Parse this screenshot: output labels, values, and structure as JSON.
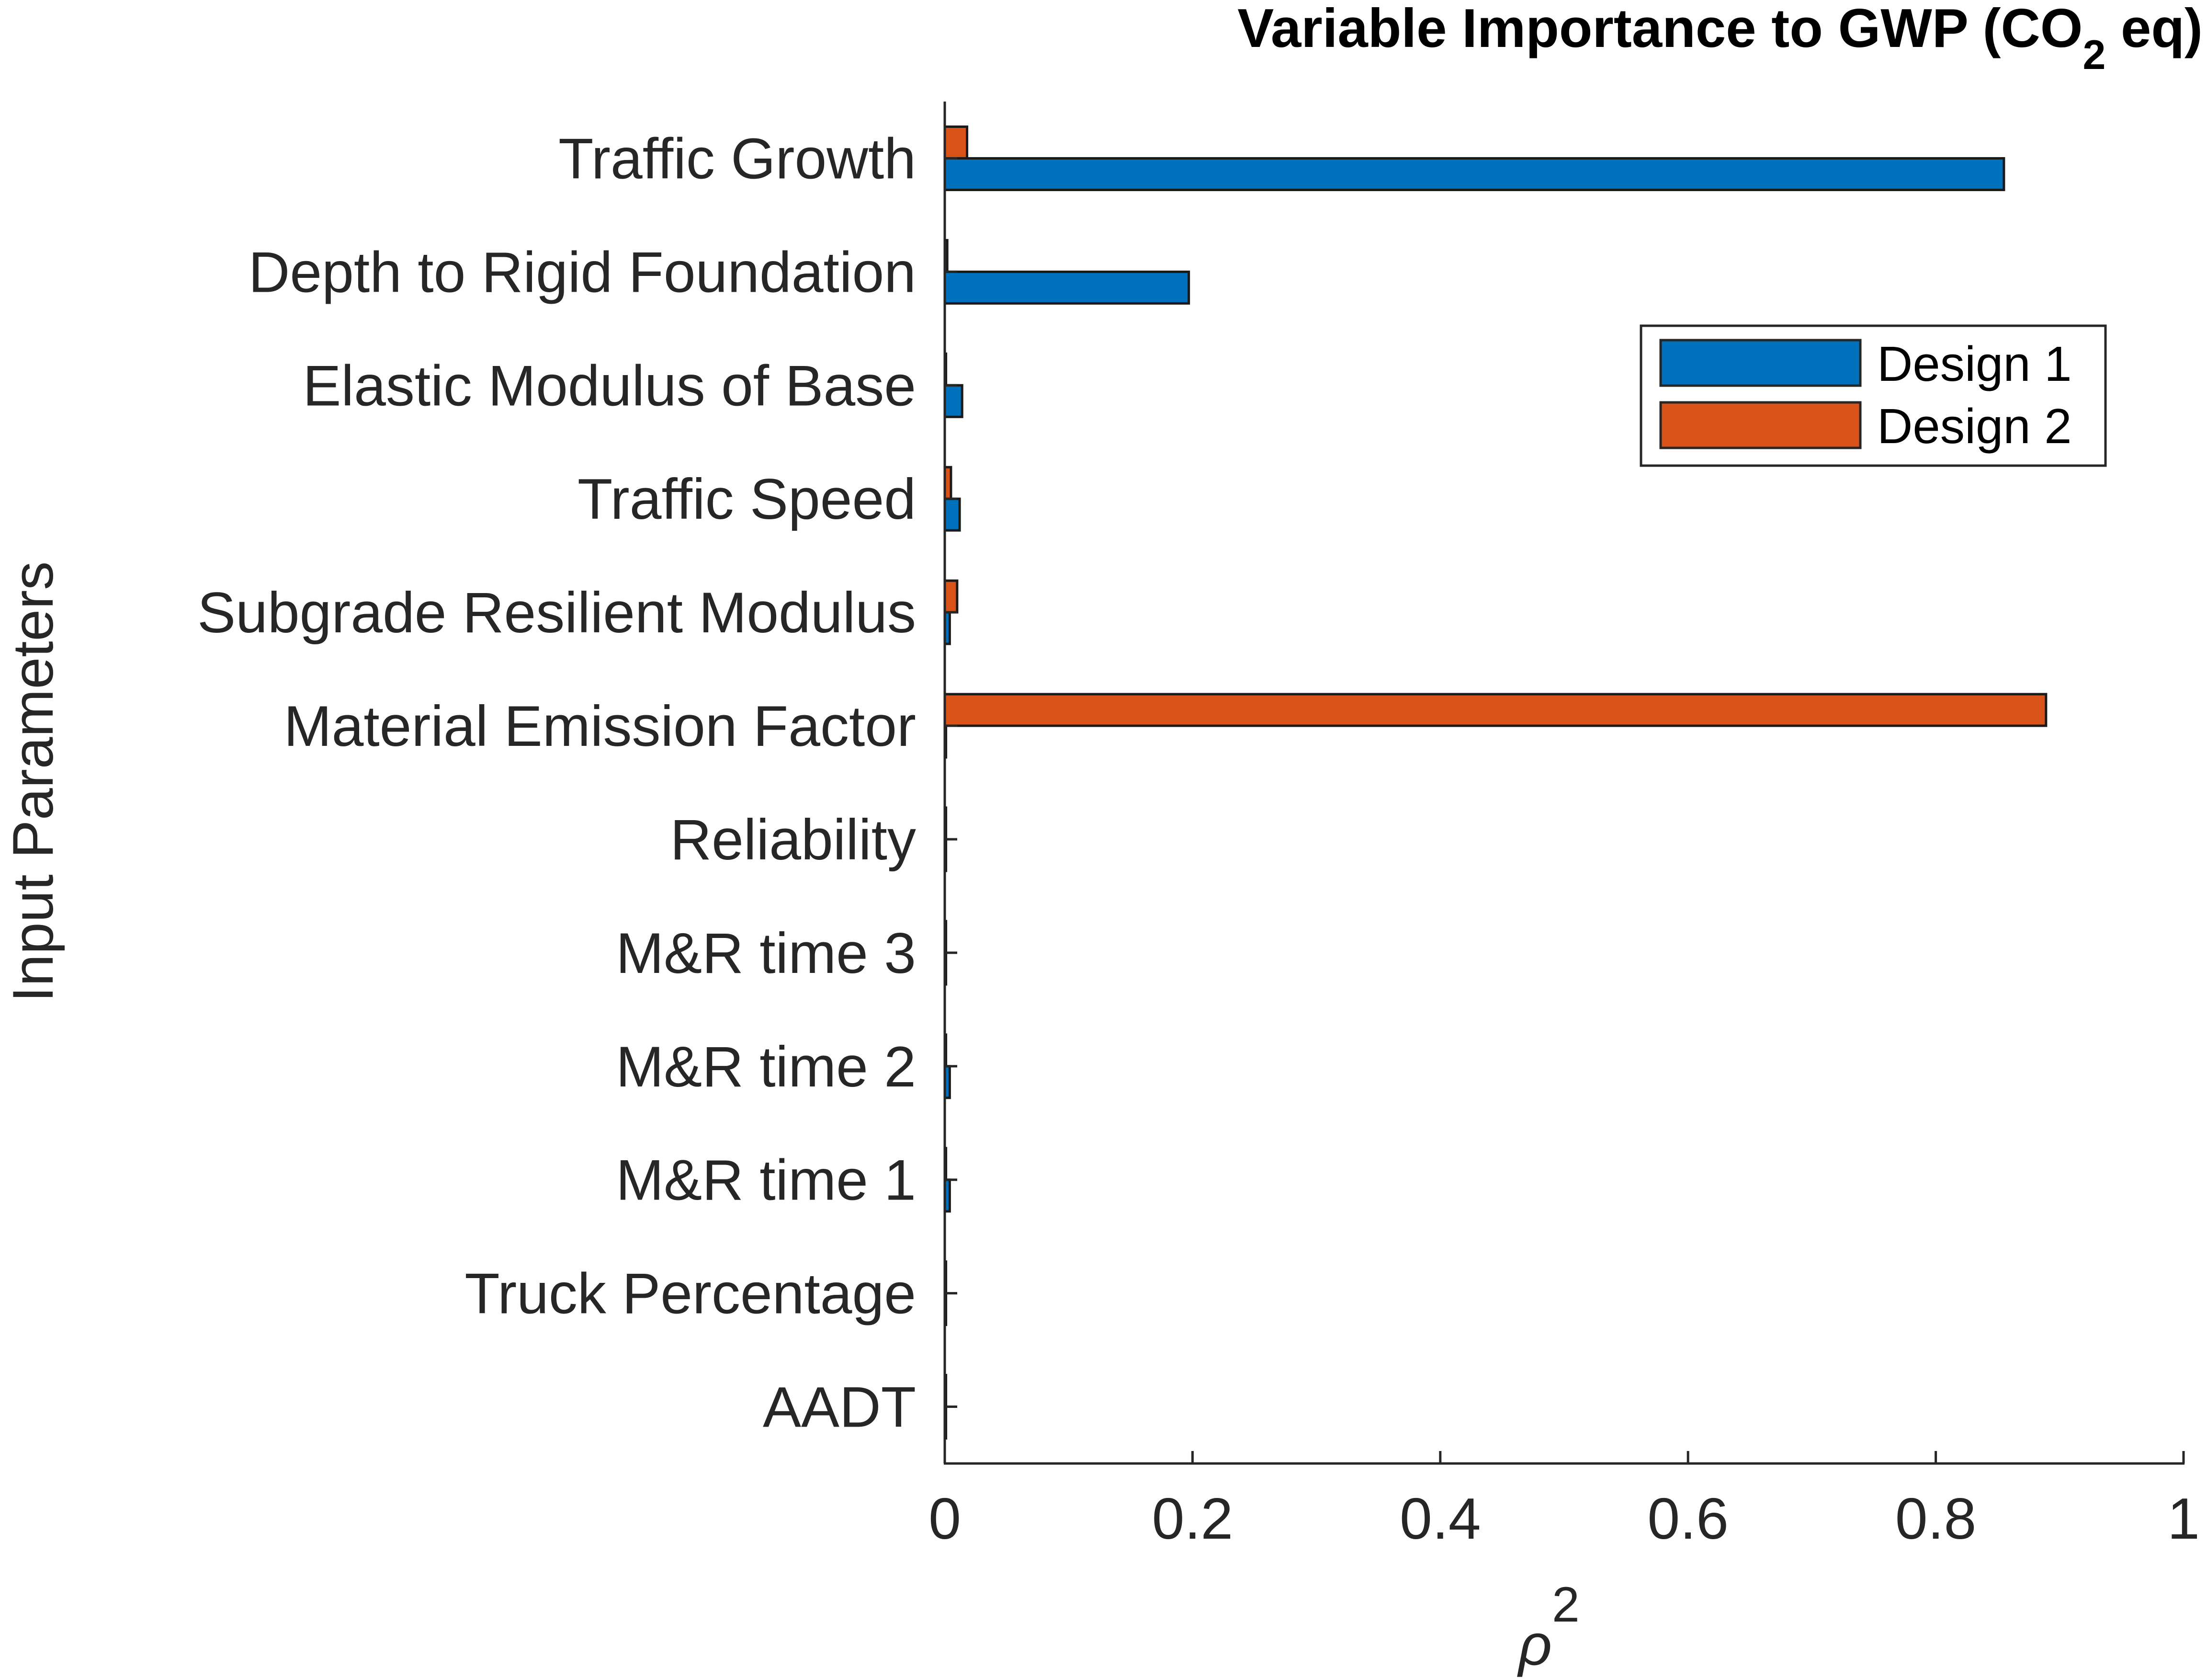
{
  "chart_data": {
    "type": "bar",
    "orientation": "horizontal",
    "title_main": "Variable Importance to GWP (CO",
    "title_sub": "2",
    "title_end": " eq)",
    "xlabel_symbol": "ρ",
    "xlabel_sup": "2",
    "ylabel": "Input Parameters",
    "xlim": [
      0,
      1
    ],
    "xticks": [
      0,
      0.2,
      0.4,
      0.6,
      0.8,
      1
    ],
    "xtick_labels": [
      "0",
      "0.2",
      "0.4",
      "0.6",
      "0.8",
      "1"
    ],
    "categories": [
      "Traffic Growth",
      "Depth to Rigid Foundation",
      "Elastic Modulus of Base",
      "Traffic Speed",
      "Subgrade Resilient Modulus",
      "Material Emission Factor",
      "Reliability",
      "M&R time 3",
      "M&R time 2",
      "M&R time 1",
      "Truck Percentage",
      "AADT"
    ],
    "series": [
      {
        "name": "Design 1",
        "color": "#0072BD",
        "values": [
          0.855,
          0.197,
          0.014,
          0.012,
          0.004,
          0.001,
          0.001,
          0.001,
          0.004,
          0.004,
          0.001,
          0.001
        ]
      },
      {
        "name": "Design 2",
        "color": "#D95319",
        "values": [
          0.018,
          0.002,
          0.001,
          0.005,
          0.01,
          0.889,
          0.001,
          0.001,
          0.001,
          0.001,
          0.001,
          0.001
        ]
      }
    ],
    "legend_position": "top-right",
    "grid": false
  }
}
